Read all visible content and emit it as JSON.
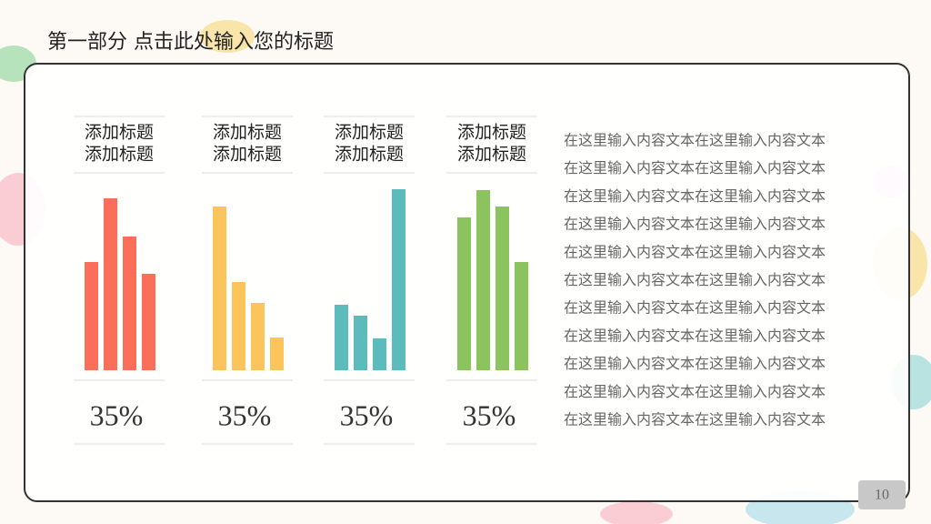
{
  "header": {
    "title": "第一部分  点击此处输入您的标题"
  },
  "chart_data": [
    {
      "type": "bar",
      "title": "添加标题",
      "subtitle": "添加标题",
      "values": [
        119,
        189,
        147,
        106
      ],
      "color": "#fa6e5a",
      "ylim": [
        0,
        200
      ],
      "annotation": "35%"
    },
    {
      "type": "bar",
      "title": "添加标题",
      "subtitle": "添加标题",
      "values": [
        180,
        97,
        74,
        36
      ],
      "color": "#fcc55b",
      "ylim": [
        0,
        200
      ],
      "annotation": "35%"
    },
    {
      "type": "bar",
      "title": "添加标题",
      "subtitle": "添加标题",
      "values": [
        72,
        60,
        35,
        199
      ],
      "color": "#5bbcbb",
      "ylim": [
        0,
        200
      ],
      "annotation": "35%"
    },
    {
      "type": "bar",
      "title": "添加标题",
      "subtitle": "添加标题",
      "values": [
        168,
        198,
        180,
        119
      ],
      "color": "#8bc45e",
      "ylim": [
        0,
        200
      ],
      "annotation": "35%"
    }
  ],
  "body": {
    "lines": [
      "在这里输入内容文本在这里输入内容文本",
      "在这里输入内容文本在这里输入内容文本",
      "在这里输入内容文本在这里输入内容文本",
      "在这里输入内容文本在这里输入内容文本",
      "在这里输入内容文本在这里输入内容文本",
      "在这里输入内容文本在这里输入内容文本",
      "在这里输入内容文本在这里输入内容文本",
      "在这里输入内容文本在这里输入内容文本",
      "在这里输入内容文本在这里输入内容文本",
      "在这里输入内容文本在这里输入内容文本",
      "在这里输入内容文本在这里输入内容文本"
    ]
  },
  "page_number": "10"
}
